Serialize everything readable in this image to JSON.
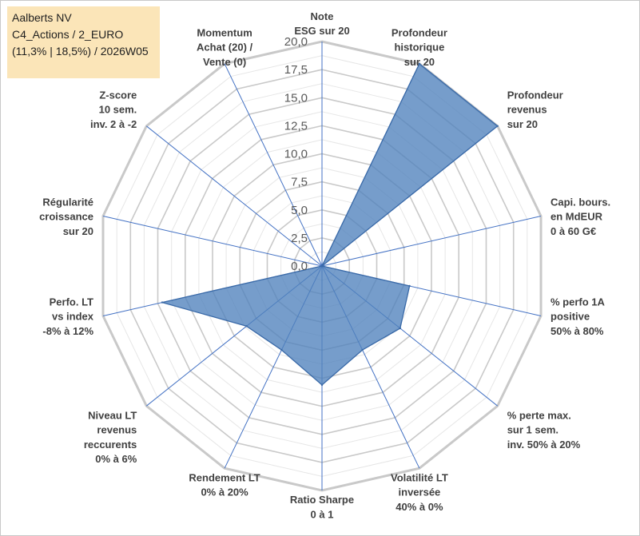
{
  "title_box": {
    "line1": "Aalberts NV",
    "line2": "C4_Actions / 2_EURO",
    "line3": "(11,3% | 18,5%) / 2026W05"
  },
  "chart_data": {
    "type": "radar",
    "rlim": [
      0,
      20
    ],
    "tick_labels": [
      "0,0",
      "2,5",
      "5,0",
      "7,5",
      "10,0",
      "12,5",
      "15,0",
      "17,5",
      "20,0"
    ],
    "axes": [
      {
        "lines": [
          "Note",
          "ESG sur 20"
        ],
        "value": 0
      },
      {
        "lines": [
          "Profondeur",
          "historique",
          "sur 20"
        ],
        "value": 20
      },
      {
        "lines": [
          "Profondeur",
          "revenus",
          "sur 20"
        ],
        "value": 20
      },
      {
        "lines": [
          "Capi. bours.",
          "en MdEUR",
          "0 à 60 G€"
        ],
        "value": 0
      },
      {
        "lines": [
          "% perfo 1A",
          "positive",
          "50% à 80%"
        ],
        "value": 8
      },
      {
        "lines": [
          "% perte max.",
          "sur 1 sem.",
          "inv. 50% à 20%"
        ],
        "value": 8.9
      },
      {
        "lines": [
          "Volatilité LT",
          "inversée",
          "40% à 0%"
        ],
        "value": 8.3
      },
      {
        "lines": [
          "Ratio Sharpe",
          "0 à 1"
        ],
        "value": 10.6
      },
      {
        "lines": [
          "Rendement LT",
          "0% à 20%"
        ],
        "value": 8.3
      },
      {
        "lines": [
          "Niveau LT",
          "revenus",
          "reccurents",
          "0% à 6%"
        ],
        "value": 8.6
      },
      {
        "lines": [
          "Perfo. LT",
          "vs index",
          "-8% à 12%"
        ],
        "value": 14.6
      },
      {
        "lines": [
          "Régularité",
          "croissance",
          "sur 20"
        ],
        "value": 0
      },
      {
        "lines": [
          "Z-score",
          "10 sem.",
          "inv. 2 à -2"
        ],
        "value": 0
      },
      {
        "lines": [
          "Momentum",
          "Achat (20) /",
          "Vente (0)"
        ],
        "value": 0
      }
    ],
    "series": [
      {
        "name": "Aalberts NV",
        "color": "#4f81bd"
      }
    ],
    "grid": true,
    "legend": "none"
  }
}
